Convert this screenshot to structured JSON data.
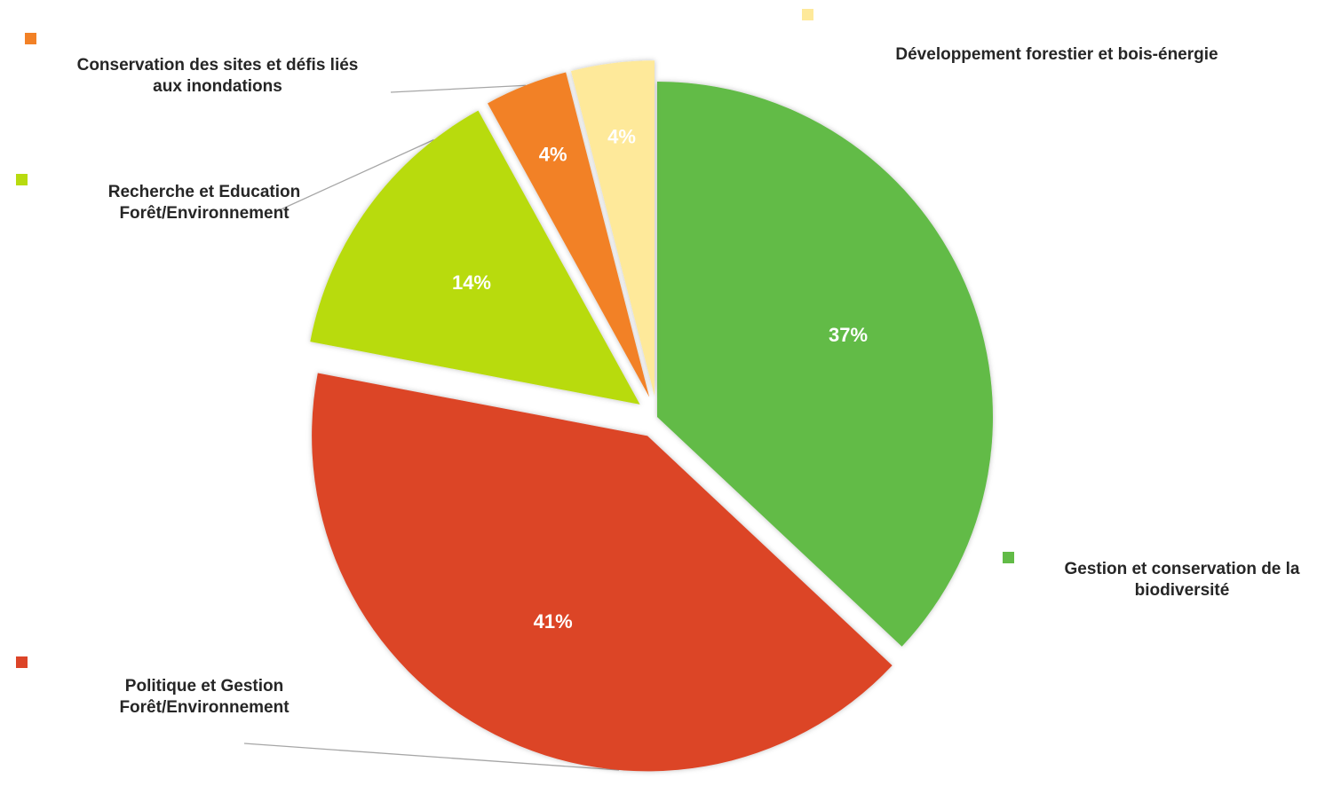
{
  "chart_data": {
    "type": "pie",
    "title": "",
    "slices": [
      {
        "label": "Gestion et conservation de la\nbiodiversité",
        "value": 37,
        "display": "37%",
        "color": "#62bb47",
        "explode": 0
      },
      {
        "label": "Politique et Gestion\nForêt/Environnement",
        "value": 41,
        "display": "41%",
        "color": "#dc4428",
        "explode": 1
      },
      {
        "label": "Recherche et Education\nForêt/Environnement",
        "value": 14,
        "display": "14%",
        "color": "#b8db0f",
        "explode": 1
      },
      {
        "label": "Conservation des sites et défis liés\naux inondations",
        "value": 4,
        "display": "4%",
        "color": "#f28126",
        "explode": 1
      },
      {
        "label": "Développement forestier et bois-énergie",
        "value": 4,
        "display": "4%",
        "color": "#fee99a",
        "explode": 1
      }
    ],
    "legend": "labels beside slices with color squares"
  }
}
